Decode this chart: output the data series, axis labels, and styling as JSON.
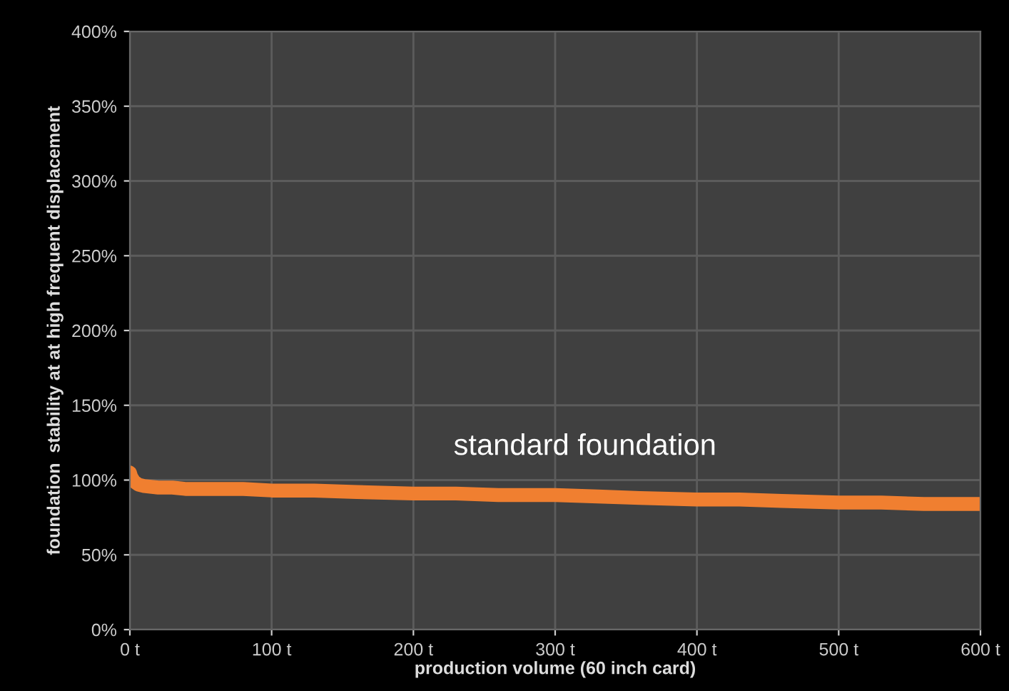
{
  "chart_data": {
    "type": "line",
    "xlabel": "production volume (60 inch card)",
    "ylabel": "foundation  stability at at high frequent displacement",
    "annotations": [
      "standard foundation"
    ],
    "series": [
      {
        "color": "#f07f30",
        "x": [
          0,
          1,
          3,
          6,
          10,
          20,
          30,
          40,
          60,
          80,
          100,
          130,
          160,
          200,
          230,
          260,
          300,
          330,
          360,
          400,
          430,
          460,
          500,
          530,
          560,
          600
        ],
        "values": [
          105,
          102,
          99,
          97,
          96,
          95,
          95,
          94,
          94,
          94,
          93,
          93,
          92,
          91,
          91,
          90,
          90,
          89,
          88,
          87,
          87,
          86,
          85,
          85,
          84,
          84
        ]
      }
    ],
    "xlim": [
      0,
      600
    ],
    "xticks": [
      {
        "value": 0,
        "label": "0 t"
      },
      {
        "value": 100,
        "label": "100 t"
      },
      {
        "value": 200,
        "label": "200 t"
      },
      {
        "value": 300,
        "label": "300 t"
      },
      {
        "value": 400,
        "label": "400 t"
      },
      {
        "value": 500,
        "label": "500 t"
      },
      {
        "value": 600,
        "label": "600 t"
      }
    ],
    "ylim": [
      0,
      400
    ],
    "yticks": [
      {
        "value": 0,
        "label": "0%"
      },
      {
        "value": 50,
        "label": "50%"
      },
      {
        "value": 100,
        "label": "100%"
      },
      {
        "value": 150,
        "label": "150%"
      },
      {
        "value": 200,
        "label": "200%"
      },
      {
        "value": 250,
        "label": "250%"
      },
      {
        "value": 300,
        "label": "300%"
      },
      {
        "value": 350,
        "label": "350%"
      },
      {
        "value": 400,
        "label": "400%"
      }
    ],
    "grid": true,
    "marker": "none",
    "line_style": "solid",
    "legend": false
  }
}
